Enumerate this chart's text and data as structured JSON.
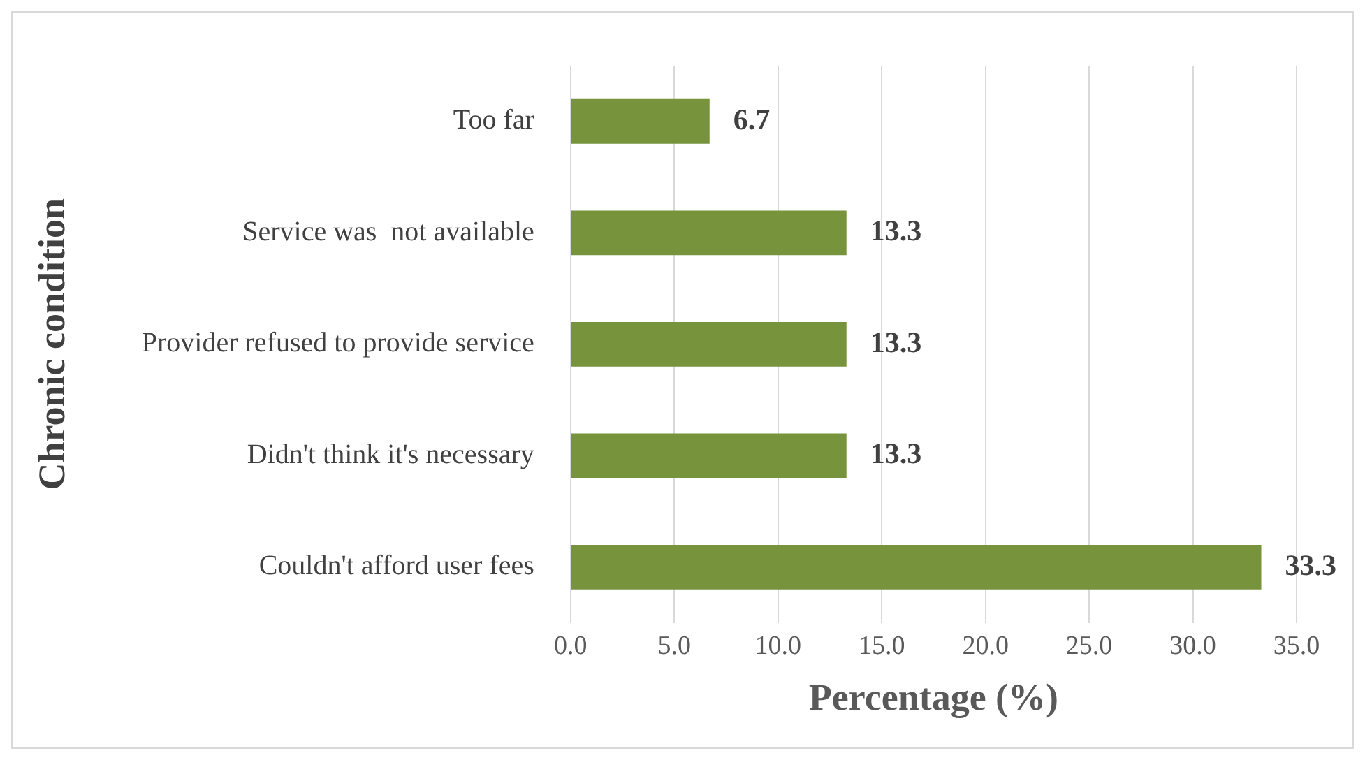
{
  "chart_data": {
    "type": "bar",
    "orientation": "horizontal",
    "xlabel": "Percentage (%)",
    "ylabel": "Chronic condition",
    "categories": [
      "Too far",
      "Service was  not available",
      "Provider refused to provide service",
      "Didn't think it's necessary",
      "Couldn't afford user fees"
    ],
    "values": [
      6.7,
      13.3,
      13.3,
      13.3,
      33.3
    ],
    "color": "#77933c",
    "xlim": [
      0,
      35
    ],
    "xticks": [
      {
        "value": 0,
        "label": "0.0"
      },
      {
        "value": 5,
        "label": "5.0"
      },
      {
        "value": 10,
        "label": "10.0"
      },
      {
        "value": 15,
        "label": "15.0"
      },
      {
        "value": 20,
        "label": "20.0"
      },
      {
        "value": 25,
        "label": "25.0"
      },
      {
        "value": 30,
        "label": "30.0"
      },
      {
        "value": 35,
        "label": "35.0"
      }
    ],
    "grid": "x",
    "data_labels": true,
    "legend": false
  }
}
